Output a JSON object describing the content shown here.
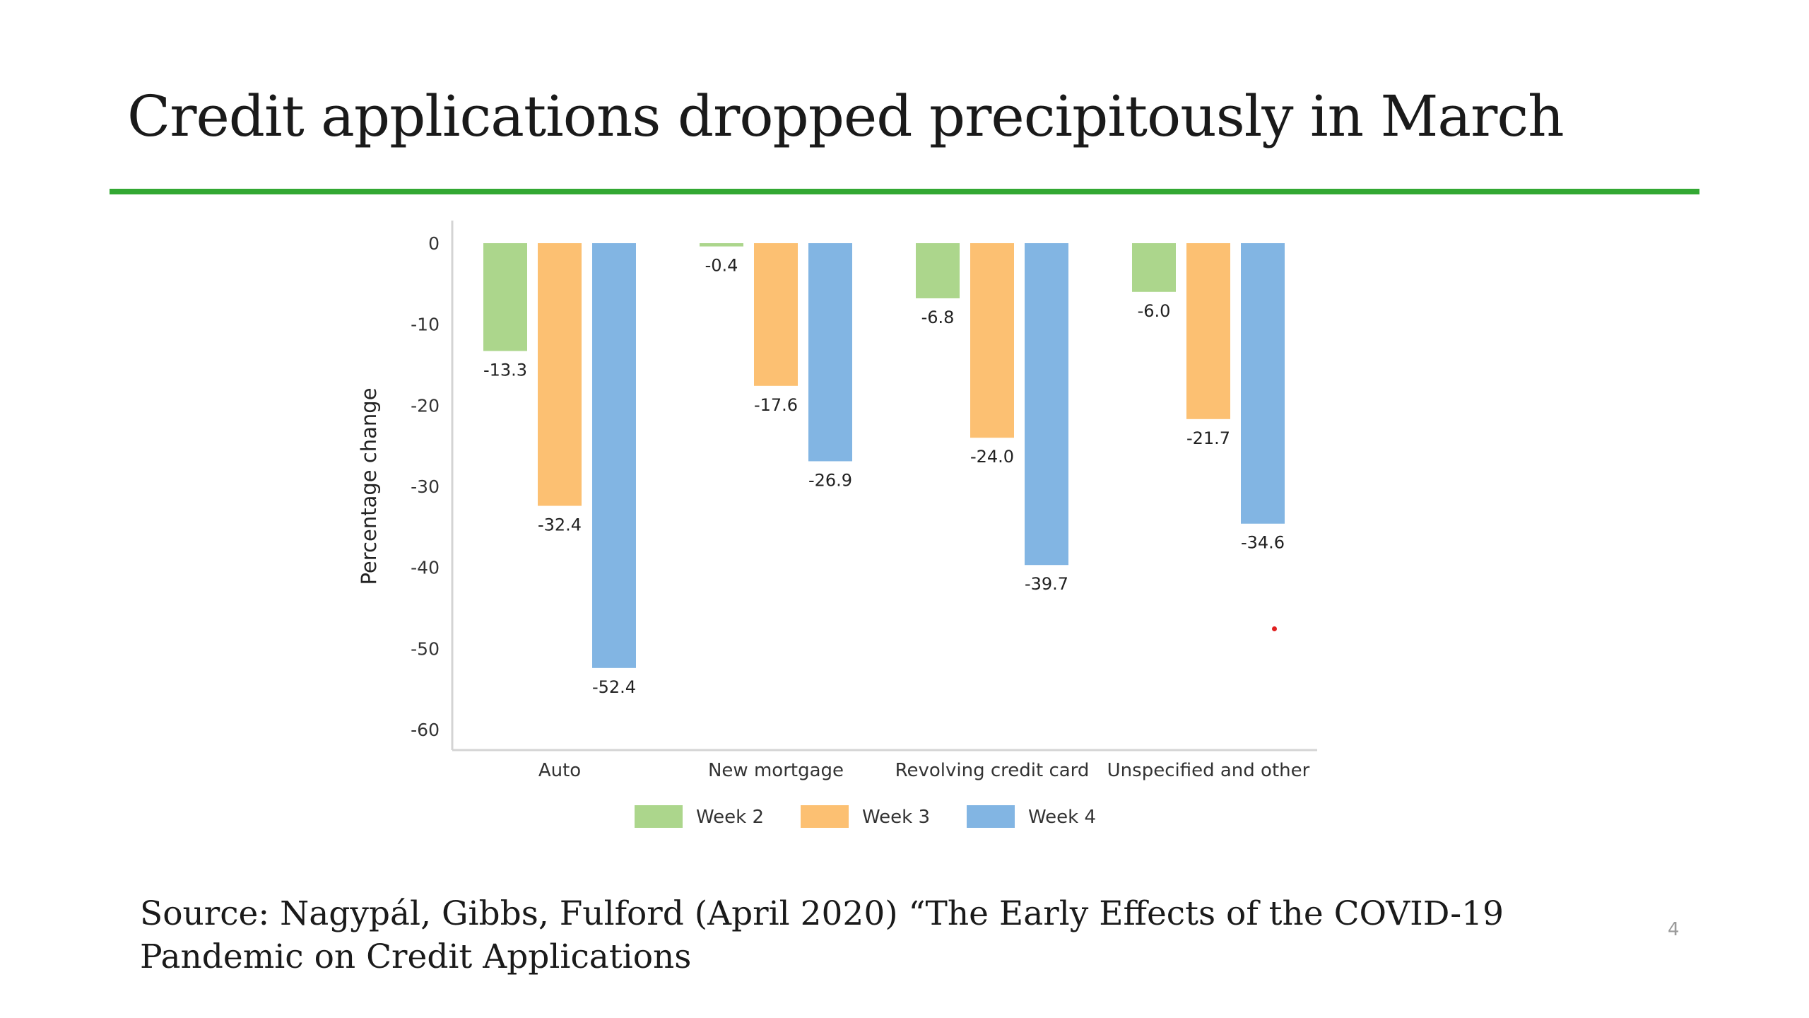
{
  "slide": {
    "title": "Credit applications dropped precipitously in March",
    "source": "Source: Nagypál, Gibbs, Fulford (April 2020) “The Early Effects of the COVID-19 Pandemic on Credit Applications",
    "page_number": "4",
    "accent_color": "#33a833"
  },
  "chart_data": {
    "type": "bar",
    "title": "",
    "xlabel": "",
    "ylabel": "Percentage change",
    "categories": [
      "Auto",
      "New mortgage",
      "Revolving credit card",
      "Unspecified and other"
    ],
    "series": [
      {
        "name": "Week 2",
        "color": "#acd68c",
        "values": [
          -13.3,
          -0.4,
          -6.8,
          -6.0
        ]
      },
      {
        "name": "Week 3",
        "color": "#fcc072",
        "values": [
          -32.4,
          -17.6,
          -24.0,
          -21.7
        ]
      },
      {
        "name": "Week 4",
        "color": "#82b5e3",
        "values": [
          -52.4,
          -26.9,
          -39.7,
          -34.6
        ]
      }
    ],
    "data_labels": [
      [
        "-13.3",
        "-0.4",
        "-6.8",
        "-6.0"
      ],
      [
        "-32.4",
        "-17.6",
        "-24.0",
        "-21.7"
      ],
      [
        "-52.4",
        "-26.9",
        "-39.7",
        "-34.6"
      ]
    ],
    "ylim": [
      -60,
      0
    ],
    "yticks": [
      0,
      -10,
      -20,
      -30,
      -40,
      -50,
      -60
    ],
    "ytick_labels": [
      "0",
      "-10",
      "-20",
      "-30",
      "-40",
      "-50",
      "-60"
    ],
    "grid": false,
    "legend_position": "bottom-center"
  }
}
